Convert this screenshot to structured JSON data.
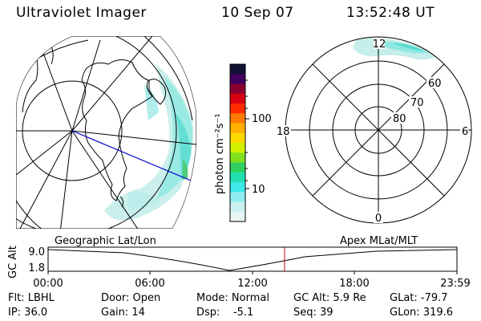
{
  "header": {
    "instrument": "Ultraviolet Imager",
    "date": "10 Sep 07",
    "time": "13:52:48 UT"
  },
  "colorbar": {
    "units": "photon cm⁻²s⁻¹",
    "tick_labels": [
      "100",
      "10"
    ],
    "colors": [
      "#111133",
      "#400060",
      "#8a0030",
      "#d80010",
      "#ff2a00",
      "#ff7a00",
      "#ffb000",
      "#ffd800",
      "#d0f000",
      "#80e020",
      "#30d060",
      "#20e0b0",
      "#40e8e8",
      "#90eef0",
      "#c8f0f0",
      "#e8f4f4"
    ]
  },
  "polar_plot": {
    "hour_labels": [
      "12",
      "18",
      "6",
      "0"
    ],
    "lat_labels": [
      "60",
      "70",
      "80"
    ]
  },
  "timeline": {
    "left_label": "Geographic Lat/Lon",
    "right_label": "Apex MLat/MLT",
    "axis_title": "GC Alt",
    "y_ticks": [
      "9.0",
      "1.8"
    ],
    "x_ticks": [
      "00:00",
      "06:00",
      "12:00",
      "18:00",
      "23:59"
    ],
    "marker_color": "#c00000"
  },
  "footer": {
    "filter": "Flt: LBHL",
    "door": "Door: Open",
    "mode": "Mode: Normal",
    "gc_alt": "GC Alt: 5.9 Re",
    "glat": "GLat: -79.7",
    "ip": "IP: 36.0",
    "gain": "Gain: 14",
    "dsp": "Dsp:    -5.1",
    "seq": "Seq: 39",
    "glon": "GLon: 319.6"
  }
}
